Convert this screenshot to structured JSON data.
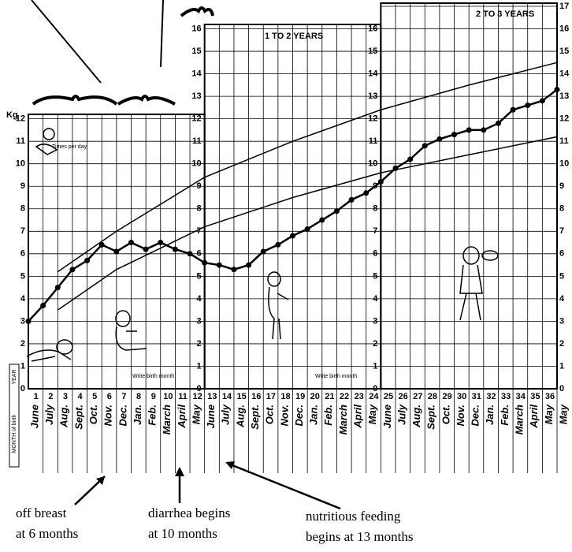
{
  "chart_data": {
    "type": "line",
    "y_unit": "Kg",
    "x": [
      0,
      1,
      2,
      3,
      4,
      5,
      6,
      7,
      8,
      9,
      10,
      11,
      12,
      13,
      14,
      15,
      16,
      17,
      18,
      19,
      20,
      21,
      22,
      23,
      24,
      25,
      26,
      27,
      28,
      29,
      30,
      31,
      32,
      33,
      34,
      35,
      36
    ],
    "xlim": [
      0,
      36
    ],
    "xticks": [
      1,
      2,
      3,
      4,
      5,
      6,
      7,
      8,
      9,
      10,
      11,
      12,
      13,
      14,
      15,
      16,
      17,
      18,
      19,
      20,
      21,
      22,
      23,
      24,
      25,
      26,
      27,
      28,
      29,
      30,
      31,
      32,
      33,
      34,
      35,
      36
    ],
    "ylim": [
      0,
      17
    ],
    "yticks": [
      0,
      1,
      2,
      3,
      4,
      5,
      6,
      7,
      8,
      9,
      10,
      11,
      12,
      13,
      14,
      15,
      16,
      17
    ],
    "grid": true,
    "series": [
      {
        "color": "#000",
        "values": [
          3.0,
          3.7,
          4.5,
          5.3,
          5.7,
          6.4,
          6.1,
          6.5,
          6.2,
          6.5,
          6.2,
          6.0,
          5.6,
          5.5,
          5.3,
          5.5,
          6.1,
          6.4,
          6.8,
          7.1,
          7.5,
          7.9,
          8.4,
          8.7,
          9.2,
          9.8,
          10.2,
          10.8,
          11.1,
          11.3,
          11.5,
          11.5,
          11.8,
          12.4,
          12.6,
          12.8,
          13.3
        ]
      },
      {
        "color": "#000",
        "x": [
          2,
          6,
          12,
          18,
          24,
          30,
          36
        ],
        "values": [
          5.2,
          7.0,
          9.4,
          11.0,
          12.4,
          13.5,
          14.5
        ]
      },
      {
        "color": "#000",
        "x": [
          2,
          6,
          12,
          18,
          24,
          30,
          36
        ],
        "values": [
          3.5,
          5.3,
          7.2,
          8.5,
          9.6,
          10.4,
          11.2
        ]
      }
    ],
    "month_labels": [
      "June",
      "July",
      "Aug.",
      "Sept.",
      "Oct.",
      "Nov.",
      "Dec.",
      "Jan.",
      "Feb.",
      "March",
      "April",
      "May",
      "June",
      "July",
      "Aug.",
      "Sept.",
      "Oct.",
      "Nov.",
      "Dec.",
      "Jan.",
      "Feb.",
      "March",
      "April",
      "May",
      "June",
      "July",
      "Aug.",
      "Sept.",
      "Oct.",
      "Nov.",
      "Dec.",
      "Jan.",
      "Feb.",
      "March",
      "April",
      "May",
      "May"
    ],
    "panel_labels": [
      "1 TO 2 YEARS",
      "2 TO 3 YEARS"
    ],
    "feeding_note": "Times per day",
    "birth_month_note": "Write birth month",
    "year_label": "YEAR",
    "month_of_birth_label": "MONTH of birth",
    "annotations": [
      "off breast",
      "at 6 months",
      "diarrhea begins",
      "at 10 months",
      "nutritious feeding",
      "begins at 13 months"
    ]
  }
}
